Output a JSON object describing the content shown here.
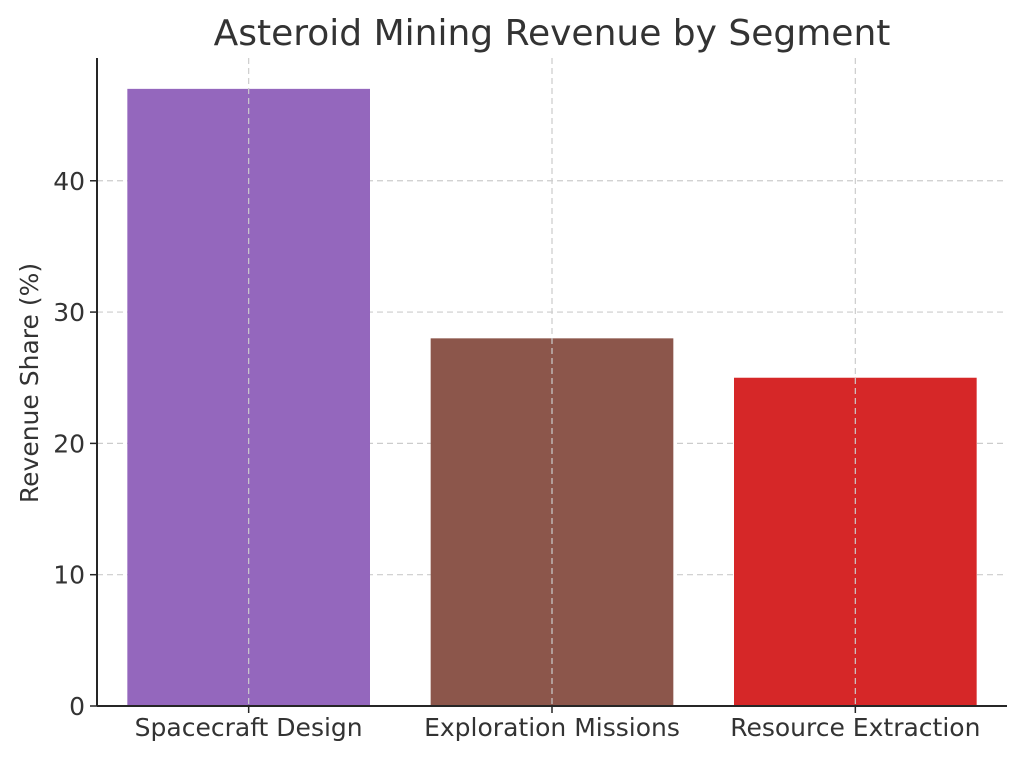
{
  "chart_data": {
    "type": "bar",
    "title": "Asteroid Mining Revenue by Segment",
    "xlabel": "",
    "ylabel": "Revenue Share (%)",
    "categories": [
      "Spacecraft Design",
      "Exploration Missions",
      "Resource Extraction"
    ],
    "values": [
      47,
      28,
      25
    ],
    "colors": [
      "#9467bd",
      "#8c564b",
      "#d62728"
    ],
    "ylim": [
      0,
      49.35
    ],
    "yticks": [
      0,
      10,
      20,
      30,
      40
    ],
    "grid": true,
    "legend": "none"
  }
}
